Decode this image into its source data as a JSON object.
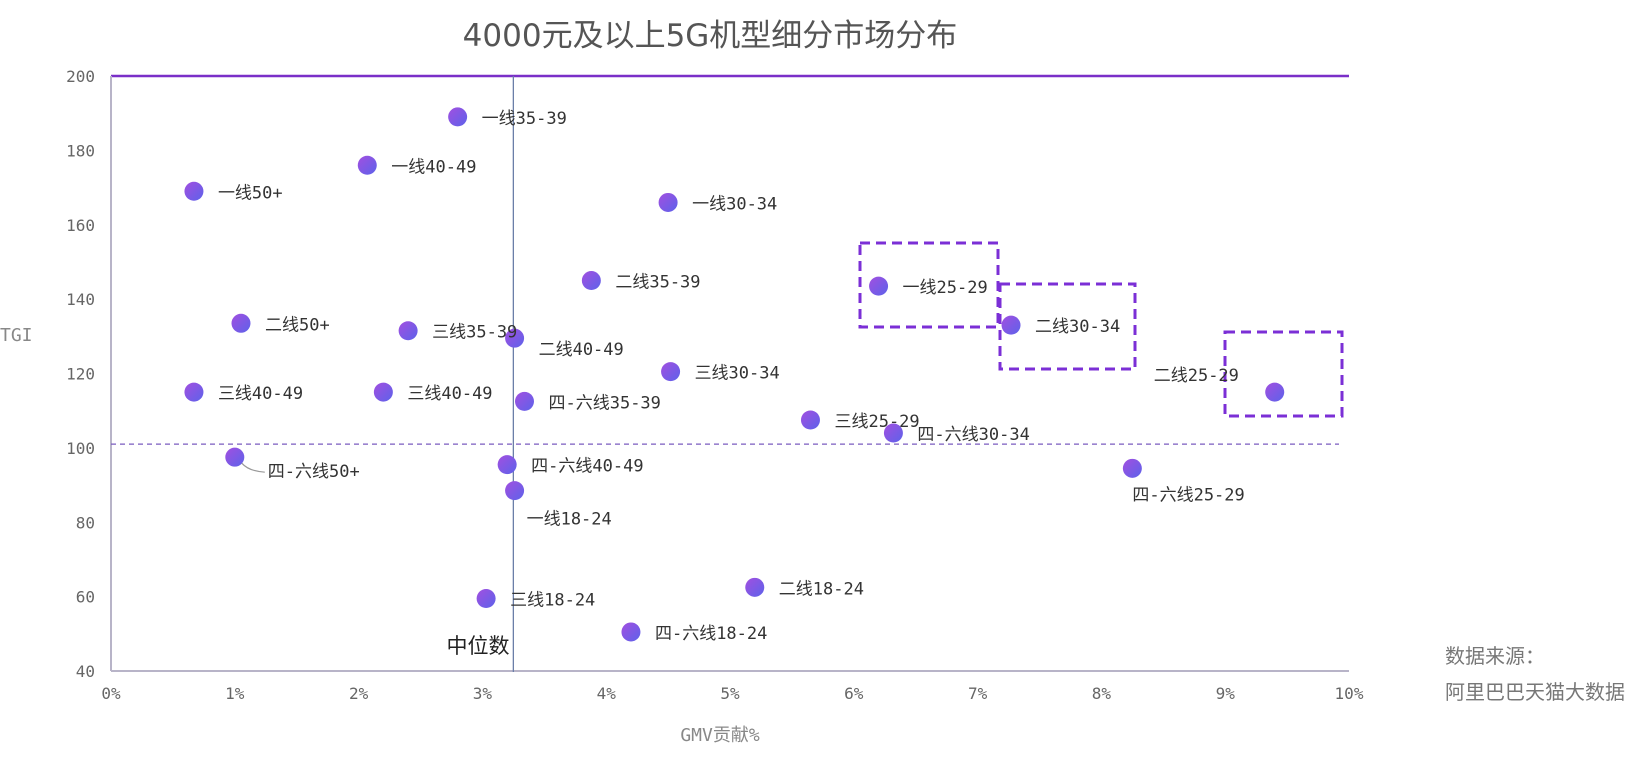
{
  "chart_data": {
    "type": "scatter",
    "title": "4000元及以上5G机型细分市场分布",
    "xlabel": "GMV贡献%",
    "ylabel": "TGI",
    "xlim": [
      0,
      10
    ],
    "ylim": [
      40,
      200
    ],
    "x_ticks": [
      "0%",
      "1%",
      "2%",
      "3%",
      "4%",
      "5%",
      "6%",
      "7%",
      "8%",
      "9%",
      "10%"
    ],
    "y_ticks": [
      "200",
      "180",
      "160",
      "140",
      "120",
      "100",
      "80",
      "60",
      "40"
    ],
    "grid": false,
    "median_x": 3.25,
    "median_label": "中位数",
    "reference_y": 101,
    "marker_color": "#8a4fe6",
    "frame_color": "#7a3fd0",
    "highlight_color": "#7b2fd6",
    "points": [
      {
        "label": "一线35-39",
        "x": 2.8,
        "y": 189
      },
      {
        "label": "一线40-49",
        "x": 2.07,
        "y": 176
      },
      {
        "label": "一线50+",
        "x": 0.67,
        "y": 169
      },
      {
        "label": "一线30-34",
        "x": 4.5,
        "y": 166
      },
      {
        "label": "二线35-39",
        "x": 3.88,
        "y": 145
      },
      {
        "label": "一线25-29",
        "x": 6.2,
        "y": 143.5,
        "highlight": true
      },
      {
        "label": "二线50+",
        "x": 1.05,
        "y": 133.5
      },
      {
        "label": "三线35-39",
        "x": 2.4,
        "y": 131.5
      },
      {
        "label": "二线40-49",
        "x": 3.26,
        "y": 129.5
      },
      {
        "label": "二线30-34",
        "x": 7.27,
        "y": 133,
        "highlight": true
      },
      {
        "label": "三线30-34",
        "x": 4.52,
        "y": 120.5
      },
      {
        "label": "二线25-29",
        "x": 9.4,
        "y": 115,
        "highlight": true
      },
      {
        "label": "三线40-49",
        "x": 0.67,
        "y": 115
      },
      {
        "label": "三线40-49",
        "x": 2.2,
        "y": 115
      },
      {
        "label": "四-六线35-39",
        "x": 3.34,
        "y": 112.5
      },
      {
        "label": "三线25-29",
        "x": 5.65,
        "y": 107.5
      },
      {
        "label": "四-六线30-34",
        "x": 6.32,
        "y": 104
      },
      {
        "label": "四-六线50+",
        "x": 1.0,
        "y": 97.5
      },
      {
        "label": "四-六线40-49",
        "x": 3.2,
        "y": 95.5
      },
      {
        "label": "四-六线25-29",
        "x": 8.25,
        "y": 94.5
      },
      {
        "label": "一线18-24",
        "x": 3.26,
        "y": 88.5
      },
      {
        "label": "二线18-24",
        "x": 5.2,
        "y": 62.5
      },
      {
        "label": "三线18-24",
        "x": 3.03,
        "y": 59.5
      },
      {
        "label": "四-六线18-24",
        "x": 4.2,
        "y": 50.5
      }
    ]
  },
  "source": {
    "line1": "数据来源：",
    "line2": "阿里巴巴天猫大数据"
  }
}
